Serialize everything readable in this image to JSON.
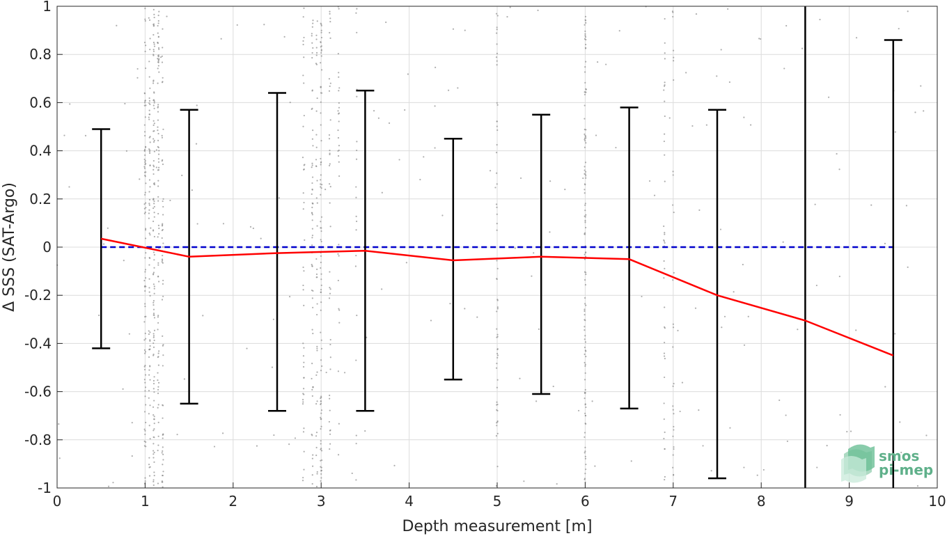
{
  "chart_data": {
    "type": "line",
    "xlabel": "Depth measurement [m]",
    "ylabel": "Δ SSS (SAT-Argo)",
    "xlim": [
      0,
      10
    ],
    "ylim": [
      -1,
      1
    ],
    "x_ticks": [
      "0",
      "1",
      "2",
      "3",
      "4",
      "5",
      "6",
      "7",
      "8",
      "9",
      "10"
    ],
    "y_ticks": [
      "-1",
      "-0.8",
      "-0.6",
      "-0.4",
      "-0.2",
      "0",
      "0.2",
      "0.4",
      "0.6",
      "0.8",
      "1"
    ],
    "grid": true,
    "zero_line": {
      "y": 0,
      "x_range": [
        0.5,
        9.5
      ],
      "color": "#0000cc",
      "style": "dashed"
    },
    "series": [
      {
        "type": "line",
        "color": "#ff0000",
        "x": [
          0.5,
          1.5,
          2.5,
          3.5,
          4.5,
          5.5,
          6.5,
          7.5,
          8.5,
          9.5
        ],
        "y": [
          0.035,
          -0.04,
          -0.025,
          -0.015,
          -0.055,
          -0.04,
          -0.05,
          -0.2,
          -0.305,
          -0.45
        ]
      },
      {
        "type": "errorbar",
        "color": "#000000",
        "x": [
          0.5,
          1.5,
          2.5,
          3.5,
          4.5,
          5.5,
          6.5,
          7.5,
          8.5,
          9.5
        ],
        "low": [
          -0.42,
          -0.65,
          -0.68,
          -0.68,
          -0.55,
          -0.61,
          -0.67,
          -0.96,
          -1.2,
          -1.2
        ],
        "high": [
          0.49,
          0.57,
          0.64,
          0.65,
          0.45,
          0.55,
          0.58,
          0.57,
          1.2,
          0.86
        ]
      },
      {
        "type": "scatter",
        "color": "#8c8c8c",
        "columns": [
          {
            "x": 1.0,
            "count": 90
          },
          {
            "x": 1.05,
            "count": 70
          },
          {
            "x": 1.1,
            "count": 110
          },
          {
            "x": 1.15,
            "count": 80
          },
          {
            "x": 1.2,
            "count": 60
          },
          {
            "x": 2.8,
            "count": 40
          },
          {
            "x": 2.9,
            "count": 60
          },
          {
            "x": 2.95,
            "count": 40
          },
          {
            "x": 3.0,
            "count": 90
          },
          {
            "x": 3.1,
            "count": 40
          },
          {
            "x": 3.2,
            "count": 30
          },
          {
            "x": 3.4,
            "count": 20
          },
          {
            "x": 5.0,
            "count": 60
          },
          {
            "x": 6.0,
            "count": 120
          },
          {
            "x": 6.9,
            "count": 40
          },
          {
            "x": 7.0,
            "count": 30
          }
        ],
        "extra_count": 200
      }
    ]
  },
  "logo": {
    "line1": "smos",
    "line2": "pi-mep",
    "color": "#5fb08a"
  }
}
